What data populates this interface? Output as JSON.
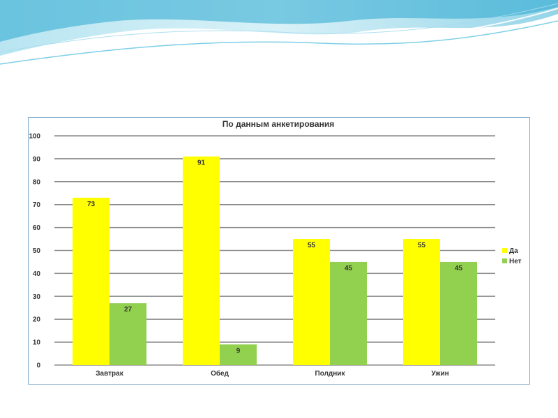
{
  "chart_data": {
    "type": "bar",
    "title": "По данным анкетирования",
    "categories": [
      "Завтрак",
      "Обед",
      "Полдник",
      "Ужин"
    ],
    "series": [
      {
        "name": "Да",
        "values": [
          73,
          91,
          55,
          55
        ],
        "color": "#ffff00"
      },
      {
        "name": "Нет",
        "values": [
          27,
          9,
          45,
          45
        ],
        "color": "#92d050"
      }
    ],
    "ylim": [
      0,
      100
    ],
    "yticks": [
      0,
      10,
      20,
      30,
      40,
      50,
      60,
      70,
      80,
      90,
      100
    ],
    "grid": true,
    "legend_position": "right",
    "data_labels": true
  },
  "colors": {
    "gridline": "#8c8c8c",
    "frame_border": "#7da7c9",
    "wave_light": "#d9f1f8",
    "wave_mid": "#8fd3e8",
    "wave_dark": "#2aa8cf"
  }
}
